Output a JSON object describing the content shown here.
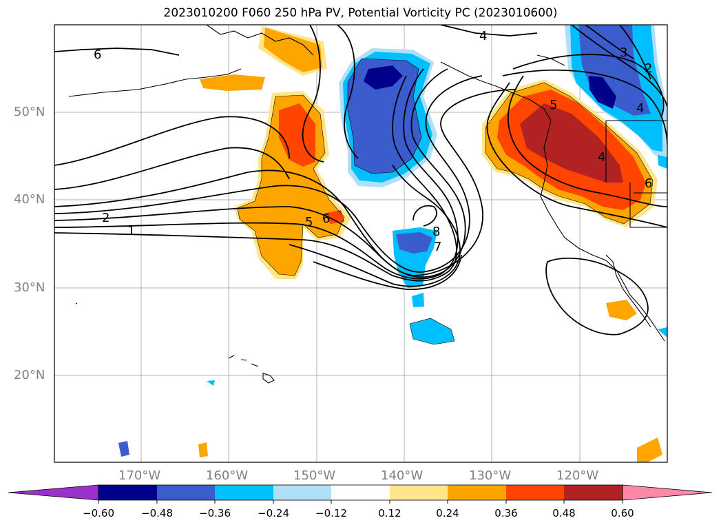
{
  "title": "2023010200 F060 250 hPa PV, Potential Vorticity PC (2023010600)",
  "map": {
    "lat_labels": [
      "50°N",
      "40°N",
      "30°N",
      "20°N"
    ],
    "lon_labels": [
      "170°W",
      "160°W",
      "150°W",
      "140°W",
      "130°W",
      "120°W"
    ],
    "contour_labels": [
      "6",
      "4",
      "3",
      "2",
      "4",
      "5",
      "2",
      "1",
      "5",
      "6",
      "8",
      "7",
      "6",
      "4"
    ]
  },
  "colorbar": {
    "ticks": [
      "−0.60",
      "−0.48",
      "−0.36",
      "−0.24",
      "−0.12",
      "0.12",
      "0.24",
      "0.36",
      "0.48",
      "0.60"
    ],
    "colors": [
      "#9932cc",
      "#00008b",
      "#3a5ccc",
      "#00bfff",
      "#b0e0f8",
      "#ffffff",
      "#ffe68a",
      "#ffa500",
      "#ff4500",
      "#b22222",
      "#ff88aa"
    ]
  }
}
